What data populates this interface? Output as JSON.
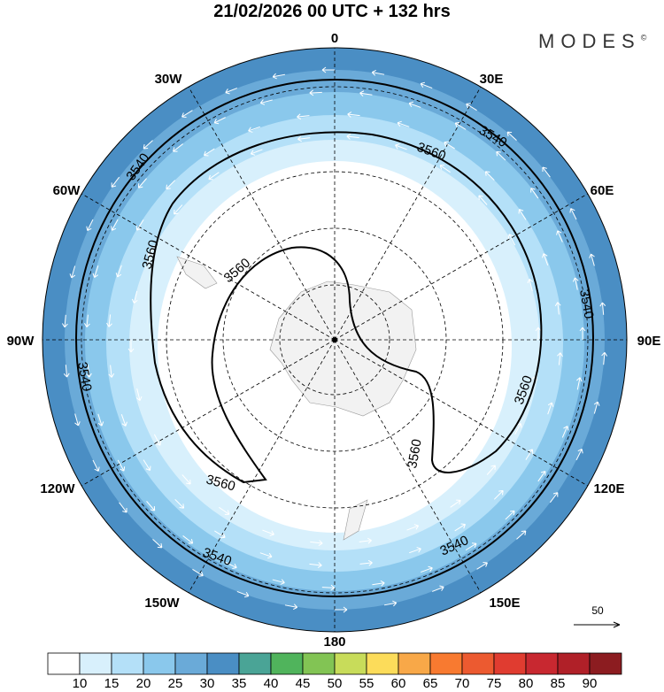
{
  "title": "21/02/2026  00 UTC  + 132 hrs",
  "logo": "MODES",
  "logo_mark": "©",
  "longitude_labels": {
    "n": "0",
    "ne30": "30E",
    "e60": "60E",
    "e90": "90E",
    "e120": "120E",
    "e150": "150E",
    "s": "180",
    "w150": "150W",
    "w120": "120W",
    "w90": "90W",
    "w60": "60W",
    "w30": "30W"
  },
  "contour_labels": [
    "3540",
    "3560"
  ],
  "vector_reference": "50",
  "colorbar": {
    "colors": [
      "#ffffff",
      "#d8f0fc",
      "#b4e0f8",
      "#8ac8ec",
      "#6aaad8",
      "#4a8ec4",
      "#4aa496",
      "#50b45c",
      "#82c454",
      "#c8dc5a",
      "#fcdc5a",
      "#f8a848",
      "#f87a30",
      "#ec5a30",
      "#e03c30",
      "#c82830",
      "#b02028",
      "#8c1c20"
    ],
    "labels": [
      "10",
      "15",
      "20",
      "25",
      "30",
      "35",
      "40",
      "45",
      "50",
      "55",
      "60",
      "65",
      "70",
      "75",
      "80",
      "85",
      "90"
    ]
  }
}
